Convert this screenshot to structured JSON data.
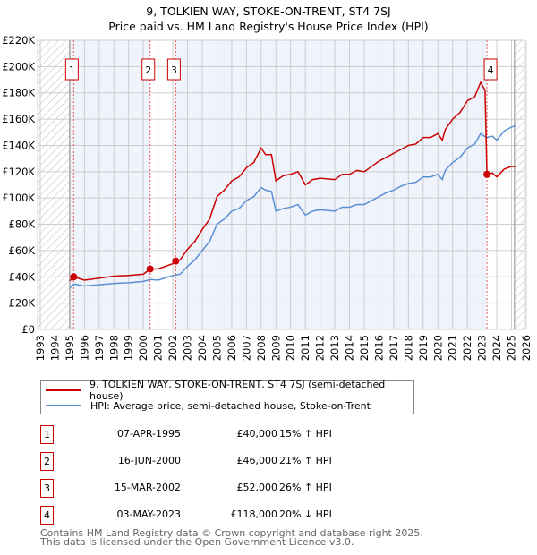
{
  "chart_data": {
    "type": "line",
    "title": "9, TOLKIEN WAY, STOKE-ON-TRENT, ST4 7SJ",
    "subtitle": "Price paid vs. HM Land Registry's House Price Index (HPI)",
    "xlim": [
      1993,
      2026
    ],
    "ylim": [
      0,
      220000
    ],
    "x_ticks": [
      "1993",
      "1994",
      "1995",
      "1996",
      "1997",
      "1998",
      "1999",
      "2000",
      "2001",
      "2002",
      "2003",
      "2004",
      "2005",
      "2006",
      "2007",
      "2008",
      "2009",
      "2010",
      "2011",
      "2012",
      "2013",
      "2014",
      "2015",
      "2016",
      "2017",
      "2018",
      "2019",
      "2020",
      "2021",
      "2022",
      "2023",
      "2024",
      "2025",
      "2026"
    ],
    "y_ticks": [
      "£0",
      "£20K",
      "£40K",
      "£60K",
      "£80K",
      "£100K",
      "£120K",
      "£140K",
      "£160K",
      "£180K",
      "£200K",
      "£220K"
    ],
    "grid": true,
    "series": [
      {
        "name": "9, TOLKIEN WAY, STOKE-ON-TRENT, ST4 7SJ (semi-detached house)",
        "color": "#cc0000",
        "x": [
          1995.0,
          1995.27,
          1996,
          1997,
          1998,
          1999,
          2000,
          2000.46,
          2001,
          2002,
          2002.2,
          2002.5,
          2003,
          2003.5,
          2004,
          2004.5,
          2005,
          2005.5,
          2006,
          2006.5,
          2007,
          2007.5,
          2008,
          2008.3,
          2008.7,
          2009,
          2009.5,
          2010,
          2010.5,
          2011,
          2011.5,
          2012,
          2013,
          2013.5,
          2014,
          2014.5,
          2015,
          2015.5,
          2016,
          2016.5,
          2017,
          2017.5,
          2018,
          2018.5,
          2019,
          2019.5,
          2020,
          2020.3,
          2020.5,
          2021,
          2021.5,
          2022,
          2022.5,
          2022.9,
          2023.2,
          2023.33,
          2023.7,
          2024,
          2024.5,
          2025,
          2025.3
        ],
        "y": [
          37000,
          40000,
          37500,
          39000,
          40500,
          41000,
          42000,
          46000,
          46000,
          50000,
          52000,
          53000,
          61000,
          67000,
          76000,
          84000,
          101000,
          106000,
          113000,
          116000,
          123000,
          127000,
          138000,
          133000,
          133000,
          113000,
          117000,
          118000,
          120000,
          110000,
          114000,
          115000,
          114000,
          118000,
          118000,
          121000,
          120000,
          124000,
          128000,
          131000,
          134000,
          137000,
          140000,
          141000,
          146000,
          146000,
          149000,
          144000,
          152000,
          160000,
          165000,
          174000,
          177000,
          188000,
          182000,
          118000,
          119000,
          116000,
          122000,
          124000,
          124000
        ]
      },
      {
        "name": "HPI: Average price, semi-detached house, Stoke-on-Trent",
        "color": "#5b8fd4",
        "x": [
          1995.0,
          1995.3,
          1996,
          1997,
          1998,
          1999,
          2000,
          2000.5,
          2001,
          2002,
          2002.5,
          2003,
          2003.5,
          2004,
          2004.5,
          2005,
          2005.5,
          2006,
          2006.5,
          2007,
          2007.5,
          2008,
          2008.3,
          2008.7,
          2009,
          2009.5,
          2010,
          2010.5,
          2011,
          2011.5,
          2012,
          2013,
          2013.5,
          2014,
          2014.5,
          2015,
          2015.5,
          2016,
          2016.5,
          2017,
          2017.5,
          2018,
          2018.5,
          2019,
          2019.5,
          2020,
          2020.3,
          2020.5,
          2021,
          2021.5,
          2022,
          2022.5,
          2022.9,
          2023.3,
          2023.7,
          2024,
          2024.5,
          2025,
          2025.3
        ],
        "y": [
          31500,
          34500,
          33000,
          34000,
          35000,
          35500,
          36500,
          38000,
          37500,
          41000,
          42000,
          48000,
          53000,
          60000,
          67000,
          80000,
          84000,
          90000,
          92000,
          98000,
          101000,
          108000,
          106000,
          105000,
          90000,
          92000,
          93000,
          95000,
          87000,
          90000,
          91000,
          90000,
          93000,
          93000,
          95000,
          95000,
          98000,
          101000,
          104000,
          106000,
          109000,
          111000,
          112000,
          116000,
          116000,
          118000,
          114000,
          121000,
          127000,
          131000,
          138000,
          141000,
          149000,
          146000,
          147000,
          144000,
          151000,
          154000,
          155000
        ]
      }
    ],
    "sales": [
      {
        "n": "1",
        "x": 1995.27,
        "y": 40000,
        "date": "07-APR-1995",
        "price": "£40,000",
        "hpi": "15% ↑ HPI"
      },
      {
        "n": "2",
        "x": 2000.46,
        "y": 46000,
        "date": "16-JUN-2000",
        "price": "£46,000",
        "hpi": "21% ↑ HPI"
      },
      {
        "n": "3",
        "x": 2002.2,
        "y": 52000,
        "date": "15-MAR-2002",
        "price": "£52,000",
        "hpi": "26% ↑ HPI"
      },
      {
        "n": "4",
        "x": 2023.33,
        "y": 118000,
        "date": "03-MAY-2023",
        "price": "£118,000",
        "hpi": "20% ↓ HPI"
      }
    ],
    "legend_placement": "below"
  },
  "footer": {
    "line1": "Contains HM Land Registry data © Crown copyright and database right 2025.",
    "line2": "This data is licensed under the Open Government Licence v3.0."
  }
}
